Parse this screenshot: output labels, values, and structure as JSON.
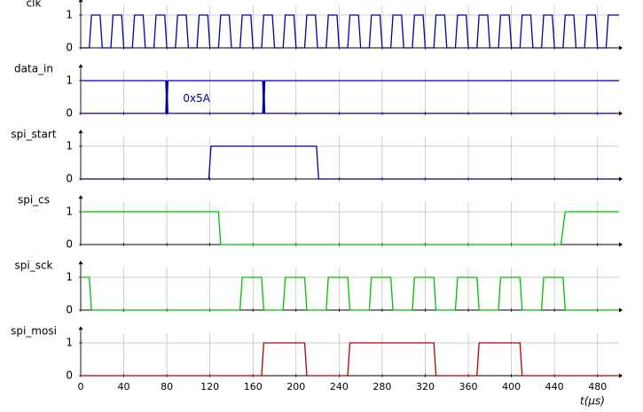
{
  "chart_data": [
    {
      "type": "line",
      "title": "clk",
      "xlim": [
        0,
        500
      ],
      "ylim": [
        0,
        1.4
      ],
      "xticks": [
        0,
        40,
        80,
        120,
        160,
        200,
        240,
        280,
        320,
        360,
        400,
        440,
        480
      ],
      "yticks": [
        0,
        1
      ],
      "grid": true,
      "series": [
        {
          "color": "#0000a0",
          "x": [
            0,
            8,
            10,
            18,
            20,
            28,
            30,
            38,
            40,
            48,
            50,
            58,
            60,
            68,
            70,
            78,
            80,
            88,
            90,
            98,
            100,
            108,
            110,
            118,
            120,
            128,
            130,
            138,
            140,
            148,
            150,
            158,
            160,
            168,
            170,
            178,
            180,
            188,
            190,
            198,
            200,
            208,
            210,
            218,
            220,
            228,
            230,
            238,
            240,
            248,
            250,
            258,
            260,
            268,
            270,
            278,
            280,
            288,
            290,
            298,
            300,
            308,
            310,
            318,
            320,
            328,
            330,
            338,
            340,
            348,
            350,
            358,
            360,
            368,
            370,
            378,
            380,
            388,
            390,
            398,
            400,
            408,
            410,
            418,
            420,
            428,
            430,
            438,
            440,
            448,
            450,
            458,
            460,
            468,
            470,
            478,
            480,
            488,
            490,
            500
          ],
          "values": [
            0,
            0,
            1,
            1,
            0,
            0,
            1,
            1,
            0,
            0,
            1,
            1,
            0,
            0,
            1,
            1,
            0,
            0,
            1,
            1,
            0,
            0,
            1,
            1,
            0,
            0,
            1,
            1,
            0,
            0,
            1,
            1,
            0,
            0,
            1,
            1,
            0,
            0,
            1,
            1,
            0,
            0,
            1,
            1,
            0,
            0,
            1,
            1,
            0,
            0,
            1,
            1,
            0,
            0,
            1,
            1,
            0,
            0,
            1,
            1,
            0,
            0,
            1,
            1,
            0,
            0,
            1,
            1,
            0,
            0,
            1,
            1,
            0,
            0,
            1,
            1,
            0,
            0,
            1,
            1,
            0,
            0,
            1,
            1,
            0,
            0,
            1,
            1,
            0,
            0,
            1,
            1,
            0,
            0,
            1,
            1,
            0,
            0,
            1,
            1
          ]
        }
      ]
    },
    {
      "type": "line",
      "title": "data_in",
      "xlim": [
        0,
        500
      ],
      "ylim": [
        0,
        1.4
      ],
      "xticks": [
        0,
        40,
        80,
        120,
        160,
        200,
        240,
        280,
        320,
        360,
        400,
        440,
        480
      ],
      "yticks": [
        0,
        1
      ],
      "grid": true,
      "annotation": "0x5A",
      "series": [
        {
          "color": "#0000a0",
          "x": [
            0,
            79,
            80,
            81,
            169,
            170,
            171,
            500
          ],
          "values": [
            1,
            1,
            0,
            1,
            1,
            0,
            1,
            1
          ]
        },
        {
          "color": "#0000a0",
          "x": [
            0,
            79,
            80,
            81,
            169,
            170,
            171,
            500
          ],
          "values": [
            0,
            0,
            1,
            0,
            0,
            1,
            0,
            0
          ]
        }
      ]
    },
    {
      "type": "line",
      "title": "spi_start",
      "xlim": [
        0,
        500
      ],
      "ylim": [
        0,
        1.4
      ],
      "xticks": [
        0,
        40,
        80,
        120,
        160,
        200,
        240,
        280,
        320,
        360,
        400,
        440,
        480
      ],
      "yticks": [
        0,
        1
      ],
      "grid": true,
      "series": [
        {
          "color": "#0000a0",
          "x": [
            0,
            119,
            121,
            219,
            221,
            500
          ],
          "values": [
            0,
            0,
            1,
            1,
            0,
            0
          ]
        }
      ]
    },
    {
      "type": "line",
      "title": "spi_cs",
      "xlim": [
        0,
        500
      ],
      "ylim": [
        0,
        1.4
      ],
      "xticks": [
        0,
        40,
        80,
        120,
        160,
        200,
        240,
        280,
        320,
        360,
        400,
        440,
        480
      ],
      "yticks": [
        0,
        1
      ],
      "grid": true,
      "series": [
        {
          "color": "#00c000",
          "x": [
            0,
            128,
            130,
            446,
            450,
            500
          ],
          "values": [
            1,
            1,
            0,
            0,
            1,
            1
          ]
        }
      ]
    },
    {
      "type": "line",
      "title": "spi_sck",
      "xlim": [
        0,
        500
      ],
      "ylim": [
        0,
        1.4
      ],
      "xticks": [
        0,
        40,
        80,
        120,
        160,
        200,
        240,
        280,
        320,
        360,
        400,
        440,
        480
      ],
      "yticks": [
        0,
        1
      ],
      "grid": true,
      "series": [
        {
          "color": "#00c000",
          "x": [
            0,
            8,
            10,
            148,
            150,
            168,
            170,
            188,
            190,
            208,
            210,
            228,
            230,
            248,
            250,
            268,
            270,
            288,
            290,
            308,
            310,
            328,
            330,
            348,
            350,
            368,
            370,
            388,
            390,
            408,
            410,
            428,
            430,
            448,
            450,
            500
          ],
          "values": [
            1,
            1,
            0,
            0,
            1,
            1,
            0,
            0,
            1,
            1,
            0,
            0,
            1,
            1,
            0,
            0,
            1,
            1,
            0,
            0,
            1,
            1,
            0,
            0,
            1,
            1,
            0,
            0,
            1,
            1,
            0,
            0,
            1,
            1,
            0,
            0
          ]
        }
      ]
    },
    {
      "type": "line",
      "title": "spi_mosi",
      "xlim": [
        0,
        500
      ],
      "ylim": [
        0,
        1.4
      ],
      "xticks": [
        0,
        40,
        80,
        120,
        160,
        200,
        240,
        280,
        320,
        360,
        400,
        440,
        480
      ],
      "yticks": [
        0,
        1
      ],
      "grid": true,
      "xlabel": "t(µs)",
      "series": [
        {
          "color": "#b00000",
          "x": [
            0,
            168,
            170,
            208,
            210,
            248,
            250,
            328,
            330,
            368,
            370,
            408,
            410,
            500
          ],
          "values": [
            0,
            0,
            1,
            1,
            0,
            0,
            1,
            1,
            0,
            0,
            1,
            1,
            0,
            0
          ]
        }
      ]
    }
  ]
}
